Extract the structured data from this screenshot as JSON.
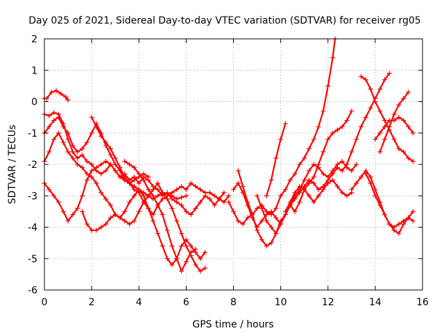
{
  "chart_data": {
    "type": "scatter",
    "title": "Day 025 of 2021, Sidereal Day-to-day VTEC variation (SDTVAR) for receiver rg05",
    "xlabel": "GPS time / hours",
    "ylabel": "SDTVAR / TECUs",
    "xlim": [
      0,
      16
    ],
    "ylim": [
      -6,
      2
    ],
    "xticks": [
      "0",
      "2",
      "4",
      "6",
      "8",
      "10",
      "12",
      "14",
      "16"
    ],
    "yticks": [
      "-6",
      "-5",
      "-4",
      "-3",
      "-2",
      "-1",
      "0",
      "1",
      "2"
    ],
    "xtick_values": [
      0,
      2,
      4,
      6,
      8,
      10,
      12,
      14,
      16
    ],
    "ytick_values": [
      -6,
      -5,
      -4,
      -3,
      -2,
      -1,
      0,
      1,
      2
    ],
    "grid": true,
    "marker": "+",
    "color": "#ff0000",
    "series": [
      {
        "x": [
          0.0,
          0.1,
          0.3,
          0.5,
          0.7,
          0.9,
          1.0
        ],
        "y": [
          0.1,
          0.1,
          0.3,
          0.35,
          0.25,
          0.15,
          0.05
        ]
      },
      {
        "x": [
          0.0,
          0.2,
          0.4,
          0.6,
          0.8,
          1.0,
          1.2,
          1.4,
          1.6,
          1.8,
          2.0,
          2.2,
          2.4,
          2.6,
          2.8,
          3.0,
          3.2,
          3.4,
          3.6,
          3.8,
          4.0,
          4.2,
          4.4,
          4.6,
          4.8,
          5.0,
          5.2,
          5.4,
          5.6,
          5.8,
          6.0,
          6.2,
          6.4,
          6.6,
          6.8,
          7.0,
          7.2,
          7.4,
          7.6
        ],
        "y": [
          -0.4,
          -0.45,
          -0.35,
          -0.4,
          -0.7,
          -1.2,
          -1.6,
          -1.8,
          -1.7,
          -1.9,
          -2.0,
          -2.2,
          -2.3,
          -2.2,
          -2.0,
          -2.2,
          -2.4,
          -2.3,
          -2.5,
          -2.4,
          -2.6,
          -2.4,
          -2.5,
          -2.7,
          -2.8,
          -3.0,
          -2.9,
          -3.1,
          -3.2,
          -3.3,
          -3.5,
          -3.6,
          -3.4,
          -3.2,
          -3.0,
          -3.1,
          -3.3,
          -3.1,
          -2.9
        ]
      },
      {
        "x": [
          0.0,
          0.2,
          0.4,
          0.6,
          0.8,
          1.0,
          1.2,
          1.4,
          1.6,
          1.8,
          2.0,
          2.2,
          2.4,
          2.6,
          2.8,
          3.0,
          3.2,
          3.4,
          3.6,
          3.8,
          4.0,
          4.2,
          4.4,
          4.6,
          4.8,
          5.0,
          5.2,
          5.4,
          5.6,
          5.8,
          6.0,
          6.2,
          6.4,
          6.6,
          6.8,
          7.0,
          7.2,
          7.4,
          7.6,
          7.8
        ],
        "y": [
          -1.0,
          -0.8,
          -0.6,
          -0.5,
          -0.8,
          -1.0,
          -1.4,
          -1.6,
          -1.5,
          -1.3,
          -1.0,
          -0.7,
          -1.0,
          -1.4,
          -1.7,
          -2.0,
          -2.2,
          -2.5,
          -2.6,
          -2.8,
          -2.9,
          -3.2,
          -3.4,
          -3.6,
          -3.3,
          -3.1,
          -3.0,
          -2.9,
          -2.8,
          -2.7,
          -2.8,
          -2.6,
          -2.7,
          -2.8,
          -2.9,
          -2.9,
          -3.0,
          -3.1,
          -3.2,
          -3.0
        ]
      },
      {
        "x": [
          0.0,
          0.2,
          0.4,
          0.6,
          0.8,
          1.0,
          1.2,
          1.4,
          1.6,
          1.8,
          2.0,
          2.2,
          2.4,
          2.6,
          2.8,
          3.0,
          3.2,
          3.4,
          3.6,
          3.8,
          4.0,
          4.2,
          4.4
        ],
        "y": [
          -2.6,
          -2.8,
          -3.0,
          -3.2,
          -3.5,
          -3.8,
          -3.6,
          -3.4,
          -3.0,
          -2.5,
          -2.2,
          -2.1,
          -2.0,
          -1.9,
          -2.0,
          -2.2,
          -2.4,
          -2.5,
          -2.6,
          -2.5,
          -2.4,
          -2.3,
          -2.4
        ]
      },
      {
        "x": [
          0.0,
          0.2,
          0.4,
          0.6,
          0.8,
          1.0,
          1.2,
          1.4,
          1.6,
          1.8,
          2.0,
          2.2,
          2.4,
          2.6,
          2.8,
          3.0,
          3.2,
          3.4,
          3.6,
          3.8,
          4.0,
          4.2,
          4.4,
          4.6,
          4.8,
          5.0,
          5.2,
          5.4,
          5.6,
          5.8,
          6.0,
          6.2,
          6.4,
          6.6,
          6.8
        ],
        "y": [
          -1.9,
          -1.6,
          -1.2,
          -1.0,
          -1.3,
          -1.6,
          -1.8,
          -2.0,
          -2.1,
          -2.3,
          -2.4,
          -2.6,
          -2.9,
          -3.1,
          -3.3,
          -3.6,
          -3.7,
          -3.5,
          -3.2,
          -3.0,
          -2.8,
          -3.0,
          -3.4,
          -3.8,
          -4.2,
          -4.6,
          -5.0,
          -5.2,
          -5.0,
          -4.6,
          -4.4,
          -4.6,
          -4.8,
          -5.0,
          -4.8
        ]
      },
      {
        "x": [
          1.6,
          1.8,
          2.0,
          2.2,
          2.4,
          2.6,
          2.8,
          3.0,
          3.2,
          3.4,
          3.6,
          3.8,
          4.0,
          4.2,
          4.4,
          4.6,
          4.8,
          5.0,
          5.2,
          5.4,
          5.6,
          5.8,
          6.0,
          6.2,
          6.4,
          6.6,
          6.8
        ],
        "y": [
          -3.5,
          -3.9,
          -4.1,
          -4.1,
          -4.0,
          -3.9,
          -3.7,
          -3.6,
          -3.7,
          -3.8,
          -3.9,
          -3.8,
          -3.5,
          -3.2,
          -3.0,
          -2.8,
          -2.6,
          -2.9,
          -3.1,
          -3.4,
          -3.8,
          -4.2,
          -4.6,
          -4.9,
          -5.2,
          -5.4,
          -5.3
        ]
      },
      {
        "x": [
          2.0,
          2.2,
          2.4,
          2.6,
          2.8,
          3.0,
          3.2,
          3.4,
          3.6,
          3.8,
          4.0,
          4.2,
          4.4,
          4.6,
          4.8,
          5.0,
          5.2,
          5.4,
          5.6,
          5.8,
          6.0
        ],
        "y": [
          -0.5,
          -0.8,
          -1.1,
          -1.3,
          -1.5,
          -1.8,
          -2.1,
          -2.4,
          -2.6,
          -2.7,
          -2.8,
          -2.9,
          -3.0,
          -3.1,
          -3.0,
          -2.9,
          -2.95,
          -3.0,
          -3.1,
          -3.05,
          -3.0
        ]
      },
      {
        "x": [
          3.4,
          3.6,
          3.8,
          4.0,
          4.2,
          4.4,
          4.6,
          4.8,
          5.0,
          5.2,
          5.4,
          5.6,
          5.8,
          6.0,
          6.2,
          6.4
        ],
        "y": [
          -1.9,
          -2.0,
          -2.1,
          -2.3,
          -2.5,
          -2.8,
          -3.0,
          -3.3,
          -3.6,
          -4.1,
          -4.6,
          -5.0,
          -5.4,
          -5.1,
          -4.8,
          -4.7
        ]
      },
      {
        "x": [
          7.8,
          8.0,
          8.2,
          8.4,
          8.6,
          8.8,
          9.0,
          9.2,
          9.4,
          9.6,
          9.8,
          10.0,
          10.2,
          10.4,
          10.6,
          10.8,
          11.0,
          11.2,
          11.4,
          11.6,
          11.8,
          12.0,
          12.2,
          12.3
        ],
        "y": [
          -3.2,
          -3.5,
          -3.8,
          -3.9,
          -3.7,
          -3.6,
          -3.4,
          -3.3,
          -3.5,
          -3.6,
          -3.4,
          -3.0,
          -2.8,
          -2.5,
          -2.3,
          -2.0,
          -1.8,
          -1.5,
          -1.2,
          -0.8,
          -0.3,
          0.5,
          1.4,
          2.0
        ]
      },
      {
        "x": [
          8.0,
          8.2,
          8.4,
          8.6,
          8.8,
          9.0,
          9.2,
          9.4,
          9.6,
          9.8,
          10.0,
          10.2,
          10.4,
          10.6,
          10.8,
          11.0,
          11.2,
          11.4,
          11.6,
          11.8,
          12.0,
          12.2,
          12.4,
          12.6,
          12.8,
          13.0
        ],
        "y": [
          -2.8,
          -2.6,
          -2.9,
          -3.3,
          -3.7,
          -4.0,
          -3.8,
          -3.6,
          -3.5,
          -3.7,
          -3.9,
          -3.6,
          -3.3,
          -3.5,
          -3.2,
          -2.8,
          -2.6,
          -2.4,
          -2.0,
          -1.6,
          -1.2,
          -1.0,
          -0.9,
          -0.8,
          -0.6,
          -0.3
        ]
      },
      {
        "x": [
          8.2,
          8.4,
          8.6,
          8.8,
          9.0,
          9.2,
          9.4,
          9.6,
          9.8,
          10.0,
          10.2,
          10.4,
          10.6,
          10.8,
          11.0,
          11.2,
          11.4,
          11.6,
          11.8,
          12.0,
          12.2,
          12.4,
          12.6,
          12.8,
          13.0,
          13.2
        ],
        "y": [
          -2.2,
          -2.7,
          -3.2,
          -3.6,
          -4.1,
          -4.4,
          -4.6,
          -4.5,
          -4.2,
          -3.8,
          -3.6,
          -3.3,
          -3.0,
          -2.8,
          -2.5,
          -2.2,
          -2.0,
          -2.1,
          -2.3,
          -2.4,
          -2.2,
          -2.0,
          -1.9,
          -2.1,
          -2.2,
          -2.0
        ]
      },
      {
        "x": [
          9.0,
          9.2,
          9.4,
          9.6,
          9.8,
          10.0,
          10.2,
          10.4,
          10.6,
          10.8,
          11.0,
          11.2,
          11.4,
          11.6,
          11.8,
          12.0,
          12.2,
          12.4,
          12.6,
          12.8,
          13.0,
          13.2,
          13.4,
          13.6,
          13.8,
          14.0,
          14.2,
          14.4,
          14.6
        ],
        "y": [
          -3.0,
          -3.4,
          -3.8,
          -4.0,
          -4.2,
          -3.9,
          -3.6,
          -3.3,
          -3.1,
          -2.9,
          -2.7,
          -2.5,
          -2.6,
          -2.8,
          -2.7,
          -2.5,
          -2.3,
          -2.1,
          -2.2,
          -2.0,
          -1.6,
          -1.2,
          -0.8,
          -0.5,
          -0.2,
          0.1,
          0.4,
          0.7,
          0.9
        ]
      },
      {
        "x": [
          9.4,
          9.6,
          9.8,
          10.0,
          10.2
        ],
        "y": [
          -3.0,
          -2.5,
          -1.8,
          -1.2,
          -0.7
        ]
      },
      {
        "x": [
          10.2,
          10.4,
          10.6,
          10.8,
          11.0,
          11.2,
          11.4,
          11.6,
          11.8,
          12.0,
          12.2,
          12.4,
          12.6,
          12.8,
          13.0
        ],
        "y": [
          -3.5,
          -3.2,
          -2.9,
          -2.7,
          -2.8,
          -3.0,
          -3.2,
          -3.0,
          -2.8,
          -2.6,
          -2.5,
          -2.7,
          -2.9,
          -3.0,
          -2.9
        ]
      },
      {
        "x": [
          13.0,
          13.2,
          13.4,
          13.6,
          13.8,
          14.0,
          14.2,
          14.4,
          14.6,
          14.8,
          15.0,
          15.2,
          15.4,
          15.6
        ],
        "y": [
          -2.8,
          -2.6,
          -2.4,
          -2.2,
          -2.4,
          -2.8,
          -3.2,
          -3.6,
          -3.9,
          -4.1,
          -4.2,
          -3.9,
          -3.7,
          -3.5
        ]
      },
      {
        "x": [
          13.4,
          13.6,
          13.8,
          14.0,
          14.2,
          14.4,
          14.6,
          14.8,
          15.0,
          15.2,
          15.4,
          15.6
        ],
        "y": [
          0.8,
          0.7,
          0.4,
          0.0,
          -0.3,
          -0.6,
          -0.9,
          -1.2,
          -1.5,
          -1.6,
          -1.8,
          -1.9
        ]
      },
      {
        "x": [
          13.6,
          13.8,
          14.0,
          14.2,
          14.4,
          14.6,
          14.8,
          15.0,
          15.2,
          15.4,
          15.6
        ],
        "y": [
          -2.3,
          -2.6,
          -3.0,
          -3.3,
          -3.6,
          -3.9,
          -4.0,
          -3.9,
          -3.8,
          -3.7,
          -3.8
        ]
      },
      {
        "x": [
          14.0,
          14.2,
          14.4,
          14.6,
          14.8,
          15.0,
          15.2,
          15.4,
          15.6
        ],
        "y": [
          -1.2,
          -1.0,
          -0.8,
          -0.6,
          -0.6,
          -0.5,
          -0.6,
          -0.8,
          -1.0
        ]
      },
      {
        "x": [
          14.2,
          14.4,
          14.6,
          14.8,
          15.0,
          15.2,
          15.4
        ],
        "y": [
          -1.6,
          -1.2,
          -0.8,
          -0.4,
          -0.1,
          0.1,
          0.3
        ]
      }
    ]
  }
}
